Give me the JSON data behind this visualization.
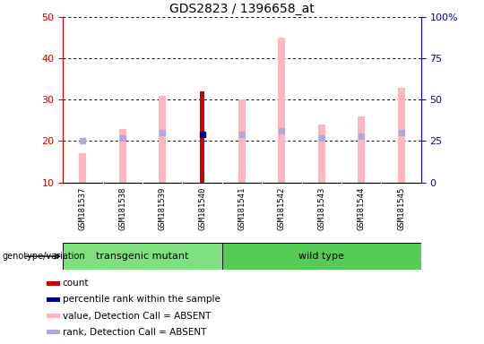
{
  "title": "GDS2823 / 1396658_at",
  "samples": [
    "GSM181537",
    "GSM181538",
    "GSM181539",
    "GSM181540",
    "GSM181541",
    "GSM181542",
    "GSM181543",
    "GSM181544",
    "GSM181545"
  ],
  "group1_label": "transgenic mutant",
  "group1_color": "#7EE07E",
  "group1_indices": [
    0,
    1,
    2,
    3
  ],
  "group2_label": "wild type",
  "group2_color": "#55CC55",
  "group2_indices": [
    4,
    5,
    6,
    7,
    8
  ],
  "value_absent": [
    17,
    23,
    31,
    null,
    30,
    45,
    24,
    26,
    33
  ],
  "rank_absent": [
    25,
    27,
    30,
    null,
    29,
    31,
    27,
    28,
    30
  ],
  "count": [
    null,
    null,
    null,
    32,
    null,
    null,
    null,
    null,
    null
  ],
  "percentile_rank": [
    null,
    null,
    null,
    29,
    null,
    null,
    null,
    null,
    null
  ],
  "left_ylim": [
    10,
    50
  ],
  "left_yticks": [
    10,
    20,
    30,
    40,
    50
  ],
  "right_ylim": [
    0,
    100
  ],
  "right_yticks": [
    0,
    25,
    50,
    75,
    100
  ],
  "right_yticklabels": [
    "0",
    "25",
    "50",
    "75",
    "100%"
  ],
  "left_ycolor": "#CC0000",
  "right_ycolor": "#0000CC",
  "bar_pink": "#FFB6C1",
  "bar_lightblue": "#AAAADD",
  "bar_darkred": "#CC0000",
  "bar_darkblue": "#000099",
  "bg_color": "#C8C8C8",
  "plot_bg": "#FFFFFF",
  "legend_items": [
    {
      "color": "#CC0000",
      "label": "count"
    },
    {
      "color": "#000099",
      "label": "percentile rank within the sample"
    },
    {
      "color": "#FFB6C1",
      "label": "value, Detection Call = ABSENT"
    },
    {
      "color": "#AAAADD",
      "label": "rank, Detection Call = ABSENT"
    }
  ]
}
